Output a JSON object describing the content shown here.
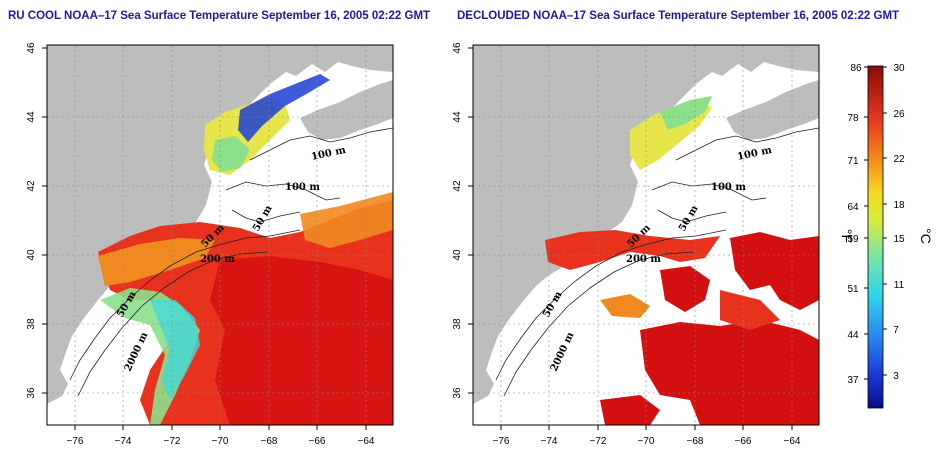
{
  "titles": {
    "left": "RU COOL NOAA–17 Sea Surface Temperature September 16, 2005 02:22 GMT",
    "right": "DECLOUDED NOAA–17 Sea Surface Temperature September 16, 2005 02:22 GMT"
  },
  "maps": {
    "lon_ticks": [
      "−76",
      "−74",
      "−72",
      "−70",
      "−68",
      "−66",
      "−64"
    ],
    "lat_ticks": [
      "46",
      "44",
      "42",
      "40",
      "38",
      "36"
    ],
    "contours_left": [
      "100 m",
      "100 m",
      "50 m",
      "50 m",
      "200 m",
      "50 m",
      "2000 m"
    ],
    "contours_right": [
      "100 m",
      "100 m",
      "50 m",
      "50 m",
      "200 m",
      "50 m",
      "2000 m"
    ]
  },
  "colorbar": {
    "fahrenheit_ticks": [
      "86",
      "78",
      "71",
      "64",
      "59",
      "51",
      "44",
      "37"
    ],
    "celsius_ticks": [
      "30",
      "26",
      "22",
      "18",
      "15",
      "11",
      "7",
      "3"
    ],
    "fahrenheit_unit": "°F",
    "celsius_unit": "°C"
  },
  "colors": {
    "land": "#bdbdbd",
    "warm": "#e8321e",
    "hot": "#d40f0f",
    "orange": "#f08a20",
    "yellow": "#e6e64a",
    "green": "#8ce08a",
    "cyan": "#44d8d8",
    "blue": "#1f3dd6",
    "title": "#1a1aa6"
  }
}
